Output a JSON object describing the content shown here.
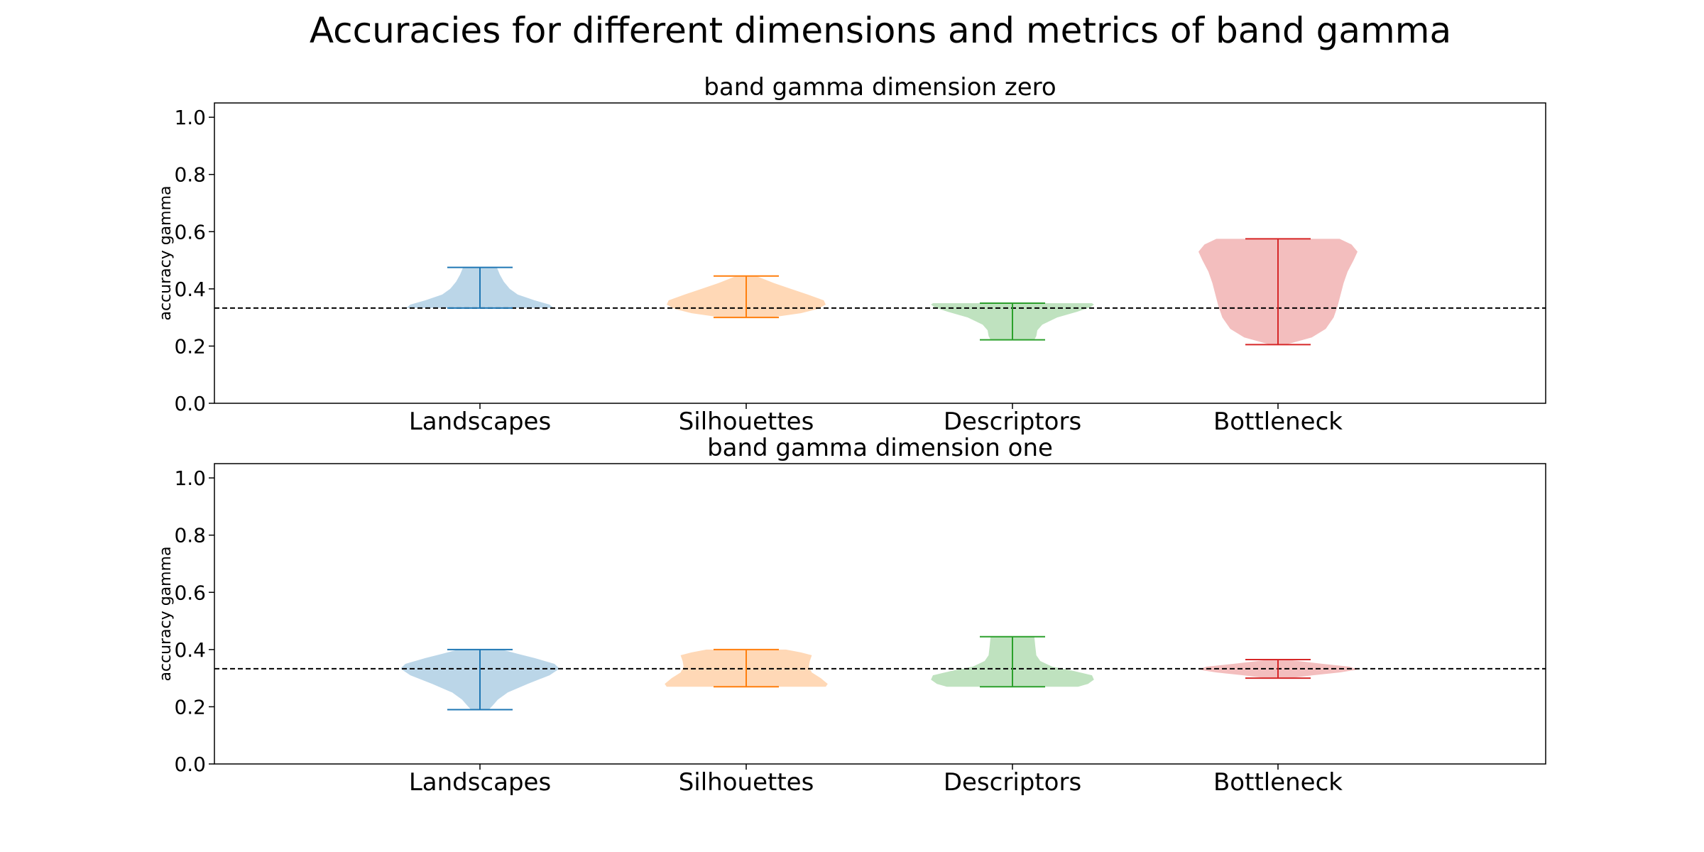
{
  "figure_title": "Accuracies for different dimensions and metrics of band gamma",
  "colors": {
    "Landscapes": "#1f77b4",
    "Silhouettes": "#ff7f0e",
    "Descriptors": "#2ca02c",
    "Bottleneck": "#d62728",
    "reference_line": "#000000"
  },
  "chart_data": [
    {
      "type": "violin",
      "title": "band gamma dimension zero",
      "ylabel": "accuracy gamma",
      "xlabel": "",
      "ylim": [
        0.0,
        1.05
      ],
      "yticks": [
        "0.0",
        "0.2",
        "0.4",
        "0.6",
        "0.8",
        "1.0"
      ],
      "categories": [
        "Landscapes",
        "Silhouettes",
        "Descriptors",
        "Bottleneck"
      ],
      "reference_line": 0.333,
      "grid": false,
      "series": [
        {
          "min": 0.333,
          "max": 0.475,
          "density": [
            [
              0.333,
              0.74
            ],
            [
              0.345,
              0.7
            ],
            [
              0.36,
              0.55
            ],
            [
              0.38,
              0.38
            ],
            [
              0.4,
              0.3
            ],
            [
              0.425,
              0.24
            ],
            [
              0.45,
              0.2
            ],
            [
              0.475,
              0.17
            ]
          ]
        },
        {
          "min": 0.3,
          "max": 0.445,
          "density": [
            [
              0.3,
              0.25
            ],
            [
              0.315,
              0.55
            ],
            [
              0.33,
              0.72
            ],
            [
              0.345,
              0.8
            ],
            [
              0.36,
              0.78
            ],
            [
              0.38,
              0.62
            ],
            [
              0.4,
              0.45
            ],
            [
              0.42,
              0.28
            ],
            [
              0.445,
              0.1
            ]
          ]
        },
        {
          "min": 0.222,
          "max": 0.35,
          "density": [
            [
              0.222,
              0.22
            ],
            [
              0.235,
              0.24
            ],
            [
              0.255,
              0.25
            ],
            [
              0.275,
              0.3
            ],
            [
              0.3,
              0.45
            ],
            [
              0.32,
              0.65
            ],
            [
              0.335,
              0.78
            ],
            [
              0.345,
              0.82
            ],
            [
              0.35,
              0.8
            ]
          ]
        },
        {
          "min": 0.205,
          "max": 0.575,
          "density": [
            [
              0.205,
              0.08
            ],
            [
              0.23,
              0.34
            ],
            [
              0.26,
              0.48
            ],
            [
              0.3,
              0.56
            ],
            [
              0.34,
              0.6
            ],
            [
              0.38,
              0.63
            ],
            [
              0.42,
              0.66
            ],
            [
              0.46,
              0.7
            ],
            [
              0.5,
              0.76
            ],
            [
              0.53,
              0.8
            ],
            [
              0.555,
              0.74
            ],
            [
              0.575,
              0.62
            ]
          ]
        }
      ]
    },
    {
      "type": "violin",
      "title": "band gamma dimension one",
      "ylabel": "accuracy gamma",
      "xlabel": "",
      "ylim": [
        0.0,
        1.05
      ],
      "yticks": [
        "0.0",
        "0.2",
        "0.4",
        "0.6",
        "0.8",
        "1.0"
      ],
      "categories": [
        "Landscapes",
        "Silhouettes",
        "Descriptors",
        "Bottleneck"
      ],
      "reference_line": 0.333,
      "grid": false,
      "series": [
        {
          "min": 0.19,
          "max": 0.4,
          "density": [
            [
              0.19,
              0.09
            ],
            [
              0.205,
              0.13
            ],
            [
              0.225,
              0.18
            ],
            [
              0.25,
              0.28
            ],
            [
              0.28,
              0.48
            ],
            [
              0.31,
              0.7
            ],
            [
              0.333,
              0.8
            ],
            [
              0.35,
              0.75
            ],
            [
              0.37,
              0.55
            ],
            [
              0.385,
              0.38
            ],
            [
              0.4,
              0.22
            ]
          ]
        },
        {
          "min": 0.27,
          "max": 0.4,
          "density": [
            [
              0.27,
              0.8
            ],
            [
              0.28,
              0.82
            ],
            [
              0.3,
              0.75
            ],
            [
              0.32,
              0.66
            ],
            [
              0.34,
              0.63
            ],
            [
              0.36,
              0.64
            ],
            [
              0.38,
              0.66
            ],
            [
              0.39,
              0.55
            ],
            [
              0.4,
              0.4
            ]
          ]
        },
        {
          "min": 0.27,
          "max": 0.445,
          "density": [
            [
              0.27,
              0.66
            ],
            [
              0.28,
              0.76
            ],
            [
              0.295,
              0.82
            ],
            [
              0.31,
              0.8
            ],
            [
              0.325,
              0.62
            ],
            [
              0.34,
              0.4
            ],
            [
              0.36,
              0.28
            ],
            [
              0.38,
              0.24
            ],
            [
              0.41,
              0.23
            ],
            [
              0.445,
              0.22
            ]
          ]
        },
        {
          "min": 0.3,
          "max": 0.365,
          "density": [
            [
              0.3,
              0.12
            ],
            [
              0.31,
              0.35
            ],
            [
              0.32,
              0.62
            ],
            [
              0.33,
              0.8
            ],
            [
              0.34,
              0.72
            ],
            [
              0.35,
              0.45
            ],
            [
              0.365,
              0.08
            ]
          ]
        }
      ]
    }
  ]
}
